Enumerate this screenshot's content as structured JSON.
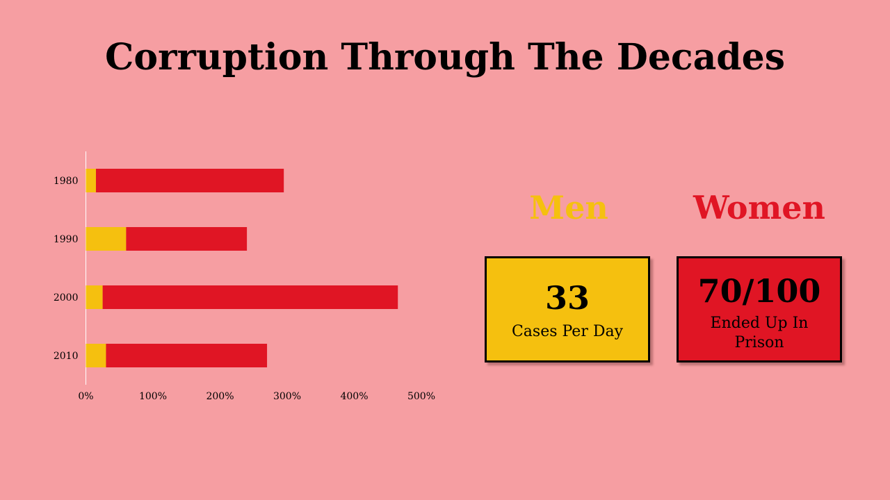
{
  "title": "Corruption Through The Decades",
  "colors": {
    "background": "#f69ea2",
    "men": "#f5c00f",
    "women": "#e01524"
  },
  "chart_data": {
    "type": "bar",
    "orientation": "horizontal",
    "stacked": true,
    "categories": [
      "1980",
      "1990",
      "2000",
      "2010"
    ],
    "series": [
      {
        "color": "#f5c00f",
        "values": [
          15,
          60,
          25,
          30
        ]
      },
      {
        "color": "#e01524",
        "values": [
          280,
          180,
          440,
          240
        ]
      }
    ],
    "xlim": [
      0,
      500
    ],
    "x_ticks": [
      "0%",
      "100%",
      "200%",
      "300%",
      "400%",
      "500%"
    ],
    "grid": false,
    "legend": "none"
  },
  "men": {
    "heading": "Men",
    "value": "33",
    "label": "Cases Per Day"
  },
  "women": {
    "heading": "Women",
    "value": "70/100",
    "label": "Ended Up In Prison"
  }
}
